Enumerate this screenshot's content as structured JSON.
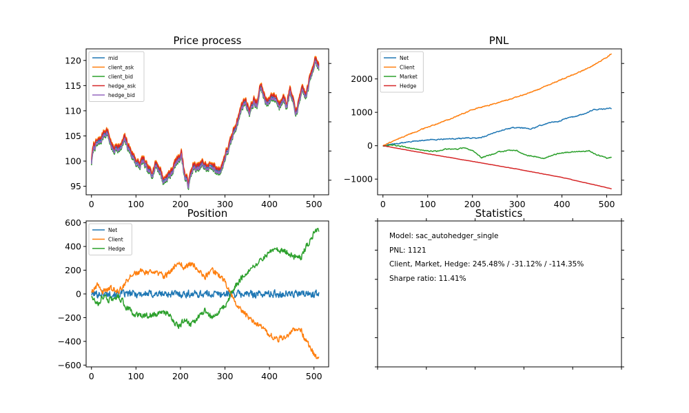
{
  "colors": {
    "blue": "#1f77b4",
    "orange": "#ff7f0e",
    "green": "#2ca02c",
    "red": "#d62728",
    "purple": "#9467bd"
  },
  "chart_data": [
    {
      "type": "line",
      "title": "Price process",
      "xlim": [
        -12,
        533
      ],
      "ylim": [
        93.3,
        122.3
      ],
      "xticks": [
        0,
        100,
        200,
        300,
        400,
        500
      ],
      "xtick_labels": [
        "0",
        "100",
        "200",
        "300",
        "400",
        "500"
      ],
      "yticks": [
        95,
        100,
        105,
        110,
        115,
        120
      ],
      "ytick_labels": [
        "95",
        "100",
        "105",
        "110",
        "115",
        "120"
      ],
      "legend_placement": "upper-left",
      "spread": 0.6,
      "anchors": [
        [
          0,
          100
        ],
        [
          5,
          103
        ],
        [
          12,
          103.5
        ],
        [
          20,
          104
        ],
        [
          28,
          105.5
        ],
        [
          35,
          106
        ],
        [
          42,
          104
        ],
        [
          50,
          102
        ],
        [
          57,
          103
        ],
        [
          65,
          102.5
        ],
        [
          75,
          104.5
        ],
        [
          82,
          103
        ],
        [
          90,
          101.5
        ],
        [
          100,
          100
        ],
        [
          108,
          99
        ],
        [
          115,
          100.3
        ],
        [
          125,
          98.5
        ],
        [
          135,
          97.5
        ],
        [
          145,
          99.5
        ],
        [
          155,
          98
        ],
        [
          162,
          96
        ],
        [
          170,
          97
        ],
        [
          178,
          97.5
        ],
        [
          188,
          99.5
        ],
        [
          195,
          100.5
        ],
        [
          202,
          101.5
        ],
        [
          210,
          97
        ],
        [
          218,
          95.5
        ],
        [
          228,
          99
        ],
        [
          238,
          98.5
        ],
        [
          250,
          99.5
        ],
        [
          262,
          98.5
        ],
        [
          270,
          99.5
        ],
        [
          280,
          98
        ],
        [
          292,
          98.5
        ],
        [
          300,
          101
        ],
        [
          310,
          103
        ],
        [
          320,
          106
        ],
        [
          330,
          108.5
        ],
        [
          338,
          111
        ],
        [
          345,
          112
        ],
        [
          355,
          110
        ],
        [
          365,
          112
        ],
        [
          372,
          111
        ],
        [
          380,
          115
        ],
        [
          388,
          113
        ],
        [
          396,
          111.5
        ],
        [
          405,
          113
        ],
        [
          415,
          112.5
        ],
        [
          422,
          111
        ],
        [
          430,
          113
        ],
        [
          438,
          111
        ],
        [
          446,
          114
        ],
        [
          455,
          111
        ],
        [
          462,
          109.5
        ],
        [
          468,
          113
        ],
        [
          475,
          114
        ],
        [
          482,
          113
        ],
        [
          490,
          116
        ],
        [
          497,
          118.5
        ],
        [
          503,
          120.5
        ],
        [
          508,
          119.5
        ],
        [
          511,
          118.5
        ]
      ],
      "series": [
        {
          "name": "mid",
          "color": "#1f77b4",
          "offset": 0
        },
        {
          "name": "client_ask",
          "color": "#ff7f0e",
          "offset": 0.6
        },
        {
          "name": "client_bid",
          "color": "#2ca02c",
          "offset": -0.6
        },
        {
          "name": "hedge_ask",
          "color": "#d62728",
          "offset": 0.35
        },
        {
          "name": "hedge_bid",
          "color": "#9467bd",
          "offset": -0.35
        }
      ]
    },
    {
      "type": "line",
      "title": "PNL",
      "xlim": [
        -12,
        533
      ],
      "ylim": [
        -1470,
        2900
      ],
      "xticks": [
        0,
        100,
        200,
        300,
        400,
        500
      ],
      "xtick_labels": [
        "0",
        "100",
        "200",
        "300",
        "400",
        "500"
      ],
      "yticks": [
        -1000,
        0,
        1000,
        2000
      ],
      "ytick_labels": [
        "−1000",
        "0",
        "1000",
        "2000"
      ],
      "legend_placement": "upper-left",
      "series": [
        {
          "name": "Net",
          "color": "#1f77b4",
          "points": [
            [
              0,
              0
            ],
            [
              30,
              60
            ],
            [
              60,
              120
            ],
            [
              80,
              140
            ],
            [
              100,
              170
            ],
            [
              130,
              200
            ],
            [
              160,
              210
            ],
            [
              190,
              230
            ],
            [
              210,
              220
            ],
            [
              230,
              290
            ],
            [
              250,
              400
            ],
            [
              270,
              480
            ],
            [
              290,
              540
            ],
            [
              310,
              540
            ],
            [
              330,
              490
            ],
            [
              350,
              600
            ],
            [
              370,
              680
            ],
            [
              390,
              720
            ],
            [
              410,
              820
            ],
            [
              430,
              880
            ],
            [
              450,
              950
            ],
            [
              470,
              1080
            ],
            [
              490,
              1100
            ],
            [
              511,
              1121
            ]
          ]
        },
        {
          "name": "Client",
          "color": "#ff7f0e",
          "points": [
            [
              0,
              0
            ],
            [
              50,
              300
            ],
            [
              100,
              560
            ],
            [
              150,
              800
            ],
            [
              200,
              1080
            ],
            [
              250,
              1260
            ],
            [
              300,
              1460
            ],
            [
              350,
              1700
            ],
            [
              400,
              1990
            ],
            [
              450,
              2270
            ],
            [
              490,
              2560
            ],
            [
              511,
              2760
            ]
          ]
        },
        {
          "name": "Market",
          "color": "#2ca02c",
          "points": [
            [
              0,
              0
            ],
            [
              20,
              20
            ],
            [
              40,
              -20
            ],
            [
              60,
              -60
            ],
            [
              80,
              -120
            ],
            [
              100,
              -160
            ],
            [
              120,
              -170
            ],
            [
              140,
              -90
            ],
            [
              160,
              -110
            ],
            [
              180,
              -70
            ],
            [
              200,
              -140
            ],
            [
              220,
              -360
            ],
            [
              240,
              -280
            ],
            [
              260,
              -180
            ],
            [
              280,
              -140
            ],
            [
              300,
              -150
            ],
            [
              320,
              -280
            ],
            [
              340,
              -320
            ],
            [
              360,
              -380
            ],
            [
              380,
              -270
            ],
            [
              400,
              -220
            ],
            [
              420,
              -190
            ],
            [
              440,
              -170
            ],
            [
              460,
              -150
            ],
            [
              475,
              -260
            ],
            [
              490,
              -320
            ],
            [
              500,
              -370
            ],
            [
              511,
              -350
            ]
          ]
        },
        {
          "name": "Hedge",
          "color": "#d62728",
          "points": [
            [
              0,
              0
            ],
            [
              100,
              -240
            ],
            [
              200,
              -470
            ],
            [
              300,
              -700
            ],
            [
              400,
              -950
            ],
            [
              511,
              -1290
            ]
          ]
        }
      ]
    },
    {
      "type": "line",
      "title": "Position",
      "xlim": [
        -12,
        533
      ],
      "ylim": [
        -615,
        615
      ],
      "xticks": [
        0,
        100,
        200,
        300,
        400,
        500
      ],
      "xtick_labels": [
        "0",
        "100",
        "200",
        "300",
        "400",
        "500"
      ],
      "yticks": [
        -600,
        -400,
        -200,
        0,
        200,
        400,
        600
      ],
      "ytick_labels": [
        "−600",
        "−400",
        "−200",
        "0",
        "200",
        "400",
        "600"
      ],
      "legend_placement": "upper-left",
      "series": [
        {
          "name": "Net",
          "color": "#1f77b4",
          "base": [
            [
              0,
              0
            ],
            [
              511,
              0
            ]
          ],
          "noise": 28
        },
        {
          "name": "Client",
          "color": "#ff7f0e",
          "base": [
            [
              0,
              20
            ],
            [
              15,
              80
            ],
            [
              25,
              20
            ],
            [
              40,
              50
            ],
            [
              60,
              20
            ],
            [
              70,
              60
            ],
            [
              80,
              120
            ],
            [
              95,
              170
            ],
            [
              110,
              190
            ],
            [
              130,
              180
            ],
            [
              150,
              170
            ],
            [
              165,
              150
            ],
            [
              180,
              200
            ],
            [
              195,
              280
            ],
            [
              210,
              220
            ],
            [
              225,
              260
            ],
            [
              240,
              200
            ],
            [
              255,
              140
            ],
            [
              270,
              200
            ],
            [
              285,
              160
            ],
            [
              300,
              100
            ],
            [
              320,
              -50
            ],
            [
              340,
              -150
            ],
            [
              360,
              -220
            ],
            [
              380,
              -280
            ],
            [
              400,
              -350
            ],
            [
              420,
              -380
            ],
            [
              440,
              -350
            ],
            [
              455,
              -310
            ],
            [
              470,
              -300
            ],
            [
              480,
              -380
            ],
            [
              495,
              -480
            ],
            [
              505,
              -530
            ],
            [
              511,
              -530
            ]
          ],
          "noise": 22
        },
        {
          "name": "Hedge",
          "color": "#2ca02c",
          "base": [
            [
              0,
              -20
            ],
            [
              15,
              -80
            ],
            [
              25,
              -20
            ],
            [
              40,
              -50
            ],
            [
              60,
              -20
            ],
            [
              70,
              -60
            ],
            [
              80,
              -120
            ],
            [
              95,
              -170
            ],
            [
              110,
              -190
            ],
            [
              130,
              -180
            ],
            [
              150,
              -170
            ],
            [
              165,
              -150
            ],
            [
              180,
              -200
            ],
            [
              195,
              -280
            ],
            [
              210,
              -220
            ],
            [
              225,
              -260
            ],
            [
              240,
              -200
            ],
            [
              255,
              -140
            ],
            [
              270,
              -200
            ],
            [
              285,
              -160
            ],
            [
              300,
              -100
            ],
            [
              320,
              50
            ],
            [
              340,
              150
            ],
            [
              360,
              220
            ],
            [
              380,
              280
            ],
            [
              400,
              350
            ],
            [
              420,
              380
            ],
            [
              440,
              350
            ],
            [
              455,
              310
            ],
            [
              470,
              300
            ],
            [
              480,
              380
            ],
            [
              495,
              480
            ],
            [
              505,
              530
            ],
            [
              511,
              530
            ]
          ],
          "noise": 22
        }
      ]
    }
  ],
  "stats_panel": {
    "title": "Statistics",
    "lines": [
      "Model: sac_autohedger_single",
      "PNL: 1121",
      "Client, Market, Hedge: 245.48% / -31.12% / -114.35%",
      "Sharpe ratio: 11.41%"
    ]
  }
}
